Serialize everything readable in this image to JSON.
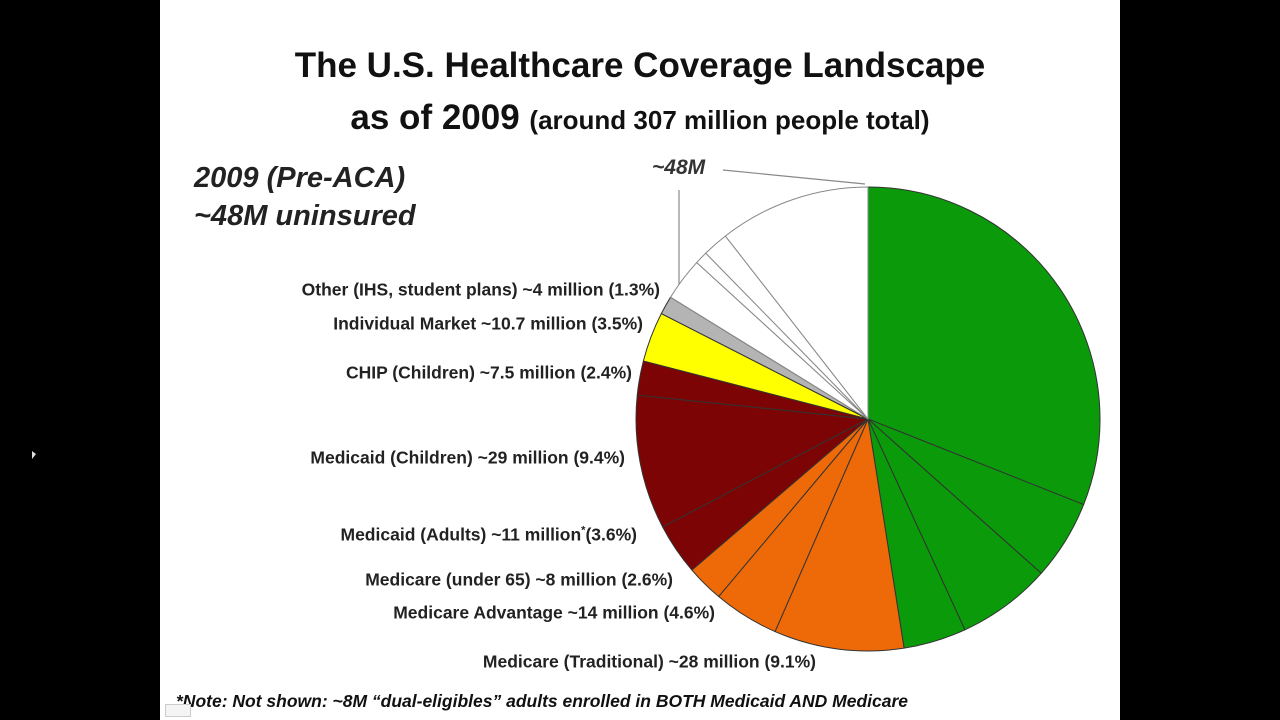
{
  "slide": {
    "title_line1": "The U.S. Healthcare Coverage Landscape",
    "title_line2_main": "as of 2009",
    "title_line2_sub": "(around 307 million people total)",
    "heading_line1": "2009 (Pre-ACA)",
    "heading_line2": "~48M uninsured",
    "uninsured_callout": "~48M",
    "note": "*Note: Not shown: ~8M “dual-eligibles” adults enrolled in BOTH Medicaid AND Medicare"
  },
  "chart_data": {
    "type": "pie",
    "unit": "percent of population",
    "start": "top, clockwise",
    "slices": [
      {
        "label": "",
        "value": 31.2,
        "color": "#0a9a0a"
      },
      {
        "label": "",
        "value": 5.6,
        "color": "#0a9a0a"
      },
      {
        "label": "",
        "value": 6.6,
        "color": "#0a9a0a"
      },
      {
        "label": "",
        "value": 4.4,
        "color": "#0a9a0a"
      },
      {
        "label": "Medicare (Traditional) ~28 million (9.1%)",
        "value": 9.1,
        "color": "#ee6a08"
      },
      {
        "label": "Medicare Advantage ~14 million (4.6%)",
        "value": 4.6,
        "color": "#ee6a08"
      },
      {
        "label": "Medicare (under 65) ~8 million (2.6%)",
        "value": 2.6,
        "color": "#ee6a08"
      },
      {
        "label": "Medicaid (Adults) ~11 million",
        "label_mark": "*",
        "label_tail": "(3.6%)",
        "value": 3.6,
        "color": "#7d0404"
      },
      {
        "label": "Medicaid (Children) ~29 million (9.4%)",
        "value": 9.4,
        "color": "#7d0404"
      },
      {
        "label": "CHIP (Children) ~7.5 million (2.4%)",
        "value": 2.4,
        "color": "#7d0404"
      },
      {
        "label": "Individual Market ~10.7 million (3.5%)",
        "value": 3.5,
        "color": "#ffff00"
      },
      {
        "label": "Other (IHS, student plans) ~4 million (1.3%)",
        "value": 1.3,
        "color": "#b4b4b4"
      },
      {
        "label": "",
        "value": 3.0,
        "color": "#ffffff"
      },
      {
        "label": "",
        "value": 0.9,
        "color": "#ffffff"
      },
      {
        "label": "",
        "value": 1.8,
        "color": "#ffffff"
      },
      {
        "label": "",
        "value": 10.6,
        "color": "#ffffff"
      }
    ]
  }
}
